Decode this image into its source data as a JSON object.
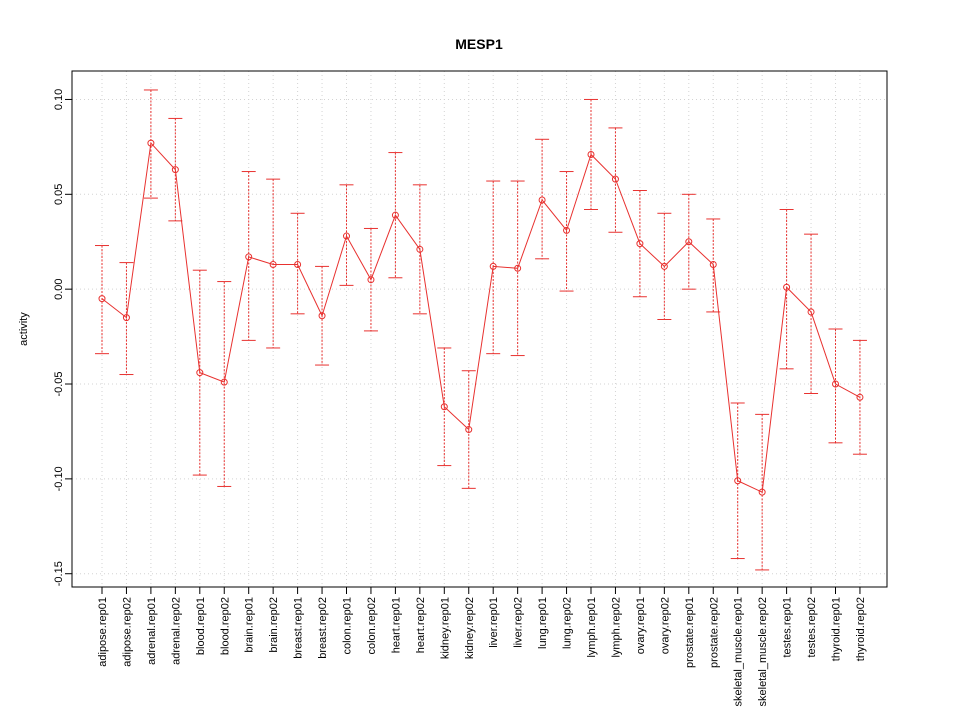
{
  "chart_data": {
    "type": "line",
    "title": "MESP1",
    "xlabel": "",
    "ylabel": "activity",
    "ylim": [
      -0.157,
      0.115
    ],
    "yticks": [
      -0.15,
      -0.1,
      -0.05,
      0.0,
      0.05,
      0.1
    ],
    "ytick_labels": [
      "-0.15",
      "-0.10",
      "-0.05",
      "0.00",
      "0.05",
      "0.10"
    ],
    "grid": true,
    "color": "#e8312f",
    "categories": [
      "adipose.rep01",
      "adipose.rep02",
      "adrenal.rep01",
      "adrenal.rep02",
      "blood.rep01",
      "blood.rep02",
      "brain.rep01",
      "brain.rep02",
      "breast.rep01",
      "breast.rep02",
      "colon.rep01",
      "colon.rep02",
      "heart.rep01",
      "heart.rep02",
      "kidney.rep01",
      "kidney.rep02",
      "liver.rep01",
      "liver.rep02",
      "lung.rep01",
      "lung.rep02",
      "lymph.rep01",
      "lymph.rep02",
      "ovary.rep01",
      "ovary.rep02",
      "prostate.rep01",
      "prostate.rep02",
      "skeletal_muscle.rep01",
      "skeletal_muscle.rep02",
      "testes.rep01",
      "testes.rep02",
      "thyroid.rep01",
      "thyroid.rep02"
    ],
    "values": [
      -0.005,
      -0.015,
      0.077,
      0.063,
      -0.044,
      -0.049,
      0.017,
      0.013,
      0.013,
      -0.014,
      0.028,
      0.005,
      0.039,
      0.021,
      -0.062,
      -0.074,
      0.012,
      0.011,
      0.047,
      0.031,
      0.071,
      0.058,
      0.024,
      0.012,
      0.025,
      0.013,
      -0.101,
      -0.107,
      0.001,
      -0.012,
      -0.05,
      -0.057
    ],
    "lower": [
      -0.034,
      -0.045,
      0.048,
      0.036,
      -0.098,
      -0.104,
      -0.027,
      -0.031,
      -0.013,
      -0.04,
      0.002,
      -0.022,
      0.006,
      -0.013,
      -0.093,
      -0.105,
      -0.034,
      -0.035,
      0.016,
      -0.001,
      0.042,
      0.03,
      -0.004,
      -0.016,
      0.0,
      -0.012,
      -0.142,
      -0.148,
      -0.042,
      -0.055,
      -0.081,
      -0.087
    ],
    "upper": [
      0.023,
      0.014,
      0.105,
      0.09,
      0.01,
      0.004,
      0.062,
      0.058,
      0.04,
      0.012,
      0.055,
      0.032,
      0.072,
      0.055,
      -0.031,
      -0.043,
      0.057,
      0.057,
      0.079,
      0.062,
      0.1,
      0.085,
      0.052,
      0.04,
      0.05,
      0.037,
      -0.06,
      -0.066,
      0.042,
      0.029,
      -0.021,
      -0.027
    ]
  }
}
